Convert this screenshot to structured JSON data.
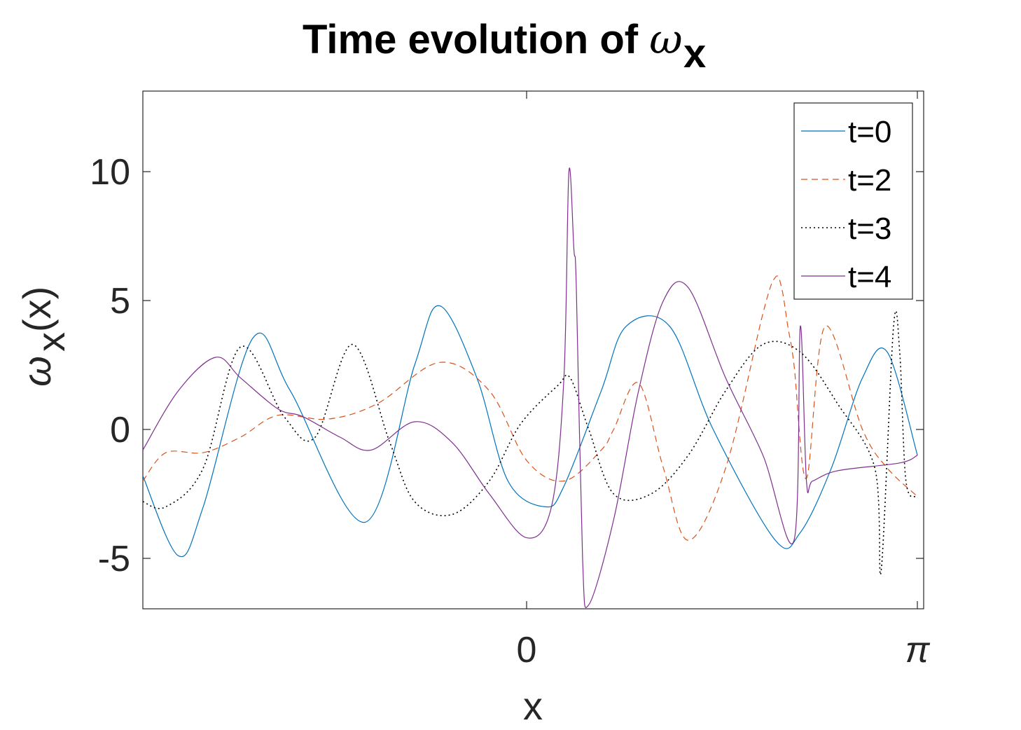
{
  "chart_data": {
    "type": "line",
    "title": "Time evolution of ω",
    "title_subscript": "x",
    "xlabel": "x",
    "ylabel": "ω",
    "ylabel_subscript": "x",
    "ylabel_suffix": "(x)",
    "xlim": [
      -3.1416,
      3.1416
    ],
    "ylim": [
      -6.9,
      13
    ],
    "xticks": [
      {
        "value": 0,
        "label": "0"
      },
      {
        "value": 3.1416,
        "label": "π"
      }
    ],
    "yticks": [
      {
        "value": -5,
        "label": "-5"
      },
      {
        "value": 0,
        "label": "0"
      },
      {
        "value": 5,
        "label": "5"
      },
      {
        "value": 10,
        "label": "10"
      }
    ],
    "grid": false,
    "legend_position": "top-right",
    "series": [
      {
        "name": "t=0",
        "color": "#0072BD",
        "style": "solid",
        "x": [
          -3.142,
          -2.8,
          -2.6,
          -2.2,
          -1.9,
          -1.3,
          -0.9,
          -0.7,
          -0.4,
          -0.15,
          0.15,
          0.3,
          0.6,
          0.8,
          1.15,
          1.5,
          2.0,
          2.2,
          2.45,
          2.7,
          2.9,
          3.142
        ],
        "values": [
          -1.8,
          -4.9,
          -3.0,
          3.55,
          1.5,
          -3.6,
          2.5,
          4.8,
          2.0,
          -2.0,
          -3.0,
          -2.2,
          1.5,
          4.0,
          4.0,
          0.0,
          -4.3,
          -4.0,
          -1.5,
          2.0,
          3.0,
          -1.0
        ]
      },
      {
        "name": "t=2",
        "color": "#D95319",
        "style": "dashed",
        "x": [
          -3.142,
          -2.9,
          -2.6,
          -2.3,
          -2.0,
          -1.6,
          -1.2,
          -0.7,
          -0.3,
          0.0,
          0.3,
          0.6,
          0.7,
          0.9,
          1.1,
          1.3,
          1.6,
          1.9,
          2.0,
          2.05,
          2.1,
          2.15,
          2.25,
          2.4,
          2.7,
          2.9,
          3.142
        ],
        "values": [
          -2.0,
          -0.9,
          -0.9,
          -0.3,
          0.55,
          0.4,
          1.0,
          2.6,
          1.5,
          -1.2,
          -2.0,
          -0.8,
          0.0,
          1.8,
          -1.5,
          -4.3,
          -1.5,
          4.5,
          5.9,
          5.5,
          4.0,
          2.5,
          -1.9,
          4.0,
          0.0,
          -1.5,
          -2.6
        ]
      },
      {
        "name": "t=3",
        "color": "#000000",
        "style": "dotted",
        "x": [
          -3.142,
          -2.9,
          -2.6,
          -2.3,
          -1.95,
          -1.7,
          -1.4,
          -1.1,
          -0.9,
          -0.6,
          -0.3,
          -0.05,
          0.25,
          0.35,
          0.5,
          0.7,
          1.0,
          1.3,
          1.6,
          1.9,
          2.2,
          2.5,
          2.8,
          2.85,
          2.95,
          3.0,
          3.05,
          3.142
        ],
        "values": [
          -2.8,
          -3.0,
          -1.5,
          3.2,
          0.5,
          -0.3,
          3.3,
          -0.5,
          -2.8,
          -3.3,
          -2.0,
          0.2,
          1.7,
          2.0,
          0.0,
          -2.5,
          -2.5,
          -1.0,
          1.5,
          3.3,
          3.0,
          1.0,
          -1.5,
          -5.5,
          4.0,
          3.0,
          -2.0,
          -2.6
        ]
      },
      {
        "name": "t=4",
        "color": "#7E2F8E",
        "style": "solid",
        "x": [
          -3.142,
          -2.8,
          -2.5,
          -2.3,
          -2.0,
          -1.8,
          -1.5,
          -1.25,
          -0.9,
          -0.6,
          -0.3,
          0.0,
          0.2,
          0.3,
          0.34,
          0.38,
          0.4,
          0.45,
          0.5,
          0.7,
          0.9,
          1.1,
          1.3,
          1.6,
          1.9,
          2.15,
          2.2,
          2.25,
          2.3,
          2.5,
          3.0,
          3.142
        ],
        "values": [
          -0.8,
          1.5,
          2.8,
          2.0,
          0.8,
          0.5,
          -0.3,
          -0.8,
          0.3,
          -0.5,
          -2.5,
          -4.2,
          -3.0,
          2.0,
          10.0,
          7.0,
          5.5,
          -5.0,
          -6.8,
          -3.5,
          1.5,
          5.0,
          5.5,
          2.0,
          -1.0,
          -4.3,
          4.0,
          -2.0,
          -2.0,
          -1.6,
          -1.3,
          -1.0
        ]
      }
    ]
  }
}
